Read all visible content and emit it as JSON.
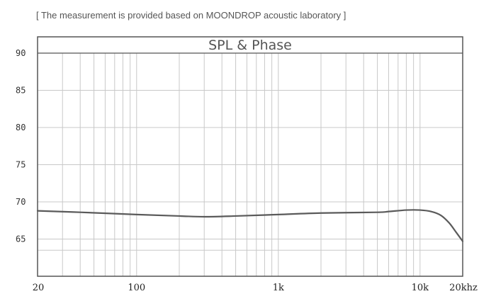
{
  "header": {
    "note": "[ The measurement is provided based on MOONDROP acoustic laboratory ]"
  },
  "colors": {
    "curve": "#5a5a5a",
    "grid": "#c8c8c8",
    "frame": "#555555"
  },
  "chart_data": {
    "type": "line",
    "title": "SPL & Phase",
    "xlabel": "",
    "ylabel": "",
    "x_scale": "log",
    "xlim": [
      20,
      20000
    ],
    "ylim": [
      60,
      90
    ],
    "grid": true,
    "x_ticks": [
      {
        "value": 20,
        "label": "20"
      },
      {
        "value": 100,
        "label": "100"
      },
      {
        "value": 1000,
        "label": "1k"
      },
      {
        "value": 10000,
        "label": "10k"
      },
      {
        "value": 20000,
        "label": "20khz"
      }
    ],
    "y_ticks": [
      {
        "value": 90,
        "label": "90"
      },
      {
        "value": 85,
        "label": "85"
      },
      {
        "value": 80,
        "label": "80"
      },
      {
        "value": 75,
        "label": "75"
      },
      {
        "value": 70,
        "label": "70"
      },
      {
        "value": 65,
        "label": "65"
      }
    ],
    "x_grid": [
      20,
      30,
      40,
      50,
      60,
      70,
      80,
      90,
      100,
      200,
      300,
      400,
      500,
      600,
      700,
      800,
      900,
      1000,
      2000,
      3000,
      4000,
      5000,
      6000,
      7000,
      8000,
      9000,
      10000,
      20000
    ],
    "y_grid": [
      90,
      85,
      80,
      75,
      70,
      65,
      63.5,
      60
    ],
    "series": [
      {
        "name": "",
        "x": [
          20,
          40,
          100,
          200,
          300,
          500,
          1000,
          2000,
          5000,
          6000,
          8000,
          10000,
          12000,
          14000,
          16000,
          18000,
          20000
        ],
        "y": [
          68.8,
          68.6,
          68.3,
          68.1,
          68.0,
          68.1,
          68.3,
          68.5,
          68.6,
          68.7,
          68.9,
          68.9,
          68.7,
          68.2,
          67.2,
          65.9,
          64.7
        ]
      }
    ]
  }
}
